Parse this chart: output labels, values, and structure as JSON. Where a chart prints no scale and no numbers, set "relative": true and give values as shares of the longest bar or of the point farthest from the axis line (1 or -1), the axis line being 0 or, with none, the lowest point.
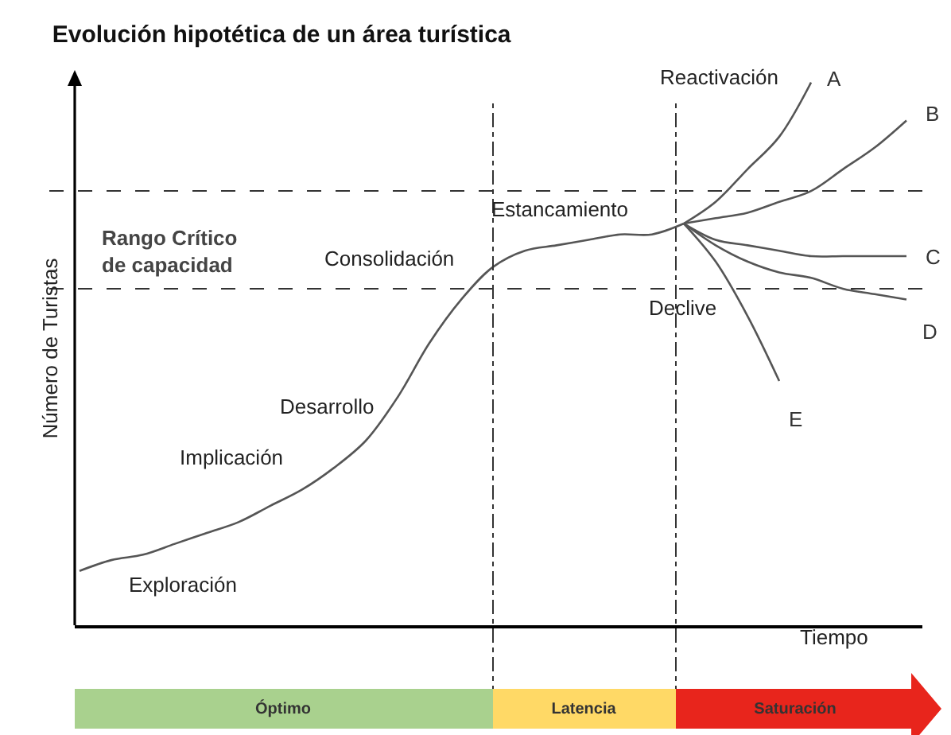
{
  "chart_data": {
    "type": "line",
    "relative": true,
    "title": "Evolución hipotética de un área turística",
    "xlabel": "Tiempo",
    "ylabel": "Número de Turistas",
    "categories": [
      null,
      null,
      null,
      null,
      null,
      null,
      null,
      null,
      null,
      null,
      null,
      null,
      null,
      null,
      null,
      null,
      null,
      null,
      null,
      null,
      null,
      null,
      null,
      null,
      null,
      null,
      null
    ],
    "series": [
      {
        "color": "#555555",
        "values": [
          0.1,
          0.12,
          0.13,
          0.15,
          0.17,
          0.19,
          0.22,
          0.25,
          0.29,
          0.34,
          0.42,
          0.52,
          0.6,
          0.66,
          0.69,
          0.7,
          0.71,
          0.72,
          0.72,
          0.74,
          null,
          null,
          null,
          null,
          null,
          null,
          null
        ]
      },
      {
        "name": "A",
        "color": "#555555",
        "values": [
          null,
          null,
          null,
          null,
          null,
          null,
          null,
          null,
          null,
          null,
          null,
          null,
          null,
          null,
          null,
          null,
          null,
          null,
          null,
          0.74,
          0.78,
          0.84,
          0.9,
          1,
          null,
          null,
          null
        ]
      },
      {
        "name": "B",
        "color": "#555555",
        "values": [
          null,
          null,
          null,
          null,
          null,
          null,
          null,
          null,
          null,
          null,
          null,
          null,
          null,
          null,
          null,
          null,
          null,
          null,
          null,
          0.74,
          0.75,
          0.76,
          0.78,
          0.8,
          0.84,
          0.88,
          0.93
        ]
      },
      {
        "name": "C",
        "color": "#555555",
        "values": [
          null,
          null,
          null,
          null,
          null,
          null,
          null,
          null,
          null,
          null,
          null,
          null,
          null,
          null,
          null,
          null,
          null,
          null,
          null,
          0.74,
          0.71,
          0.7,
          0.69,
          0.68,
          0.68,
          0.68,
          0.68
        ]
      },
      {
        "name": "D",
        "color": "#555555",
        "values": [
          null,
          null,
          null,
          null,
          null,
          null,
          null,
          null,
          null,
          null,
          null,
          null,
          null,
          null,
          null,
          null,
          null,
          null,
          null,
          0.74,
          0.7,
          0.67,
          0.65,
          0.64,
          0.62,
          0.61,
          0.6
        ]
      },
      {
        "name": "E",
        "color": "#555555",
        "values": [
          null,
          null,
          null,
          null,
          null,
          null,
          null,
          null,
          null,
          null,
          null,
          null,
          null,
          null,
          null,
          null,
          null,
          null,
          null,
          0.74,
          0.67,
          0.57,
          0.45,
          null,
          null,
          null,
          null
        ]
      }
    ],
    "annotations": [
      "Exploración",
      "Implicación",
      "Desarrollo",
      "Consolidación",
      "Estancamiento",
      "Reactivación",
      "Declive",
      "Rango Crítico\nde capacidad",
      "Óptimo",
      "Latencia",
      "Saturación"
    ],
    "ref_lines": [
      {
        "axis": "y",
        "value": 0.62,
        "line_style": "dashed",
        "color": "#333333"
      },
      {
        "axis": "y",
        "value": 0.8,
        "line_style": "dashed",
        "color": "#333333"
      }
    ],
    "grid": false,
    "legend": false,
    "marker": "none",
    "line_style": "solid"
  }
}
